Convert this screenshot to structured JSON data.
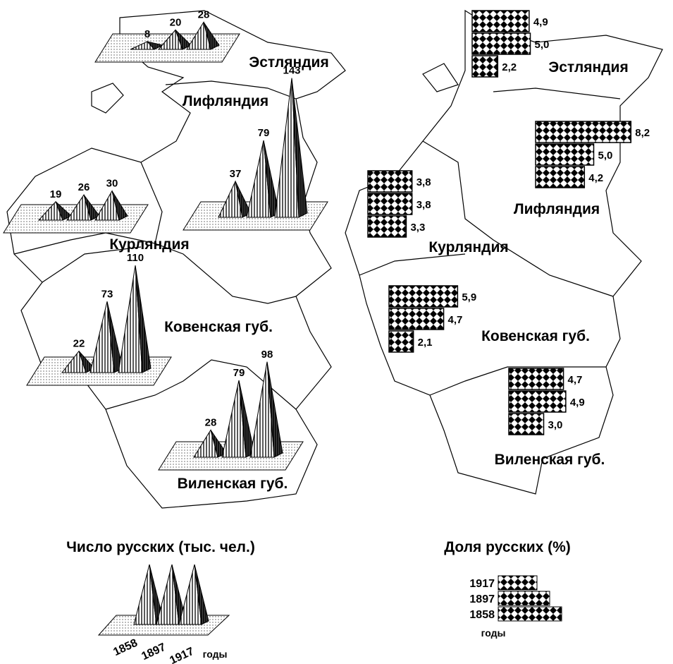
{
  "chart_data": [
    {
      "type": "pyramid",
      "title": "Число русских (тыс. чел.)",
      "categories": [
        "Эстляндия",
        "Лифляндия",
        "Курляндия",
        "Ковенская губ.",
        "Виленская губ."
      ],
      "series": [
        {
          "name": "1858",
          "values": [
            8,
            37,
            19,
            22,
            28
          ]
        },
        {
          "name": "1897",
          "values": [
            20,
            79,
            26,
            73,
            79
          ]
        },
        {
          "name": "1917",
          "values": [
            28,
            143,
            30,
            110,
            98
          ]
        }
      ],
      "legend_label": "годы"
    },
    {
      "type": "bar",
      "title": "Доля русских (%)",
      "categories": [
        "Эстляндия",
        "Лифляндия",
        "Курляндия",
        "Ковенская губ.",
        "Виленская губ."
      ],
      "series": [
        {
          "name": "1917",
          "values": [
            4.9,
            8.2,
            3.8,
            5.9,
            4.7
          ],
          "value_labels": [
            "4,9",
            "8,2",
            "3,8",
            "5,9",
            "4,7"
          ]
        },
        {
          "name": "1897",
          "values": [
            5.0,
            5.0,
            3.8,
            4.7,
            4.9
          ],
          "value_labels": [
            "5,0",
            "5,0",
            "3,8",
            "4,7",
            "4,9"
          ]
        },
        {
          "name": "1858",
          "values": [
            2.2,
            4.2,
            3.3,
            2.1,
            3.0
          ],
          "value_labels": [
            "2,2",
            "4,2",
            "3,3",
            "2,1",
            "3,0"
          ]
        }
      ],
      "legend_label": "годы"
    }
  ]
}
